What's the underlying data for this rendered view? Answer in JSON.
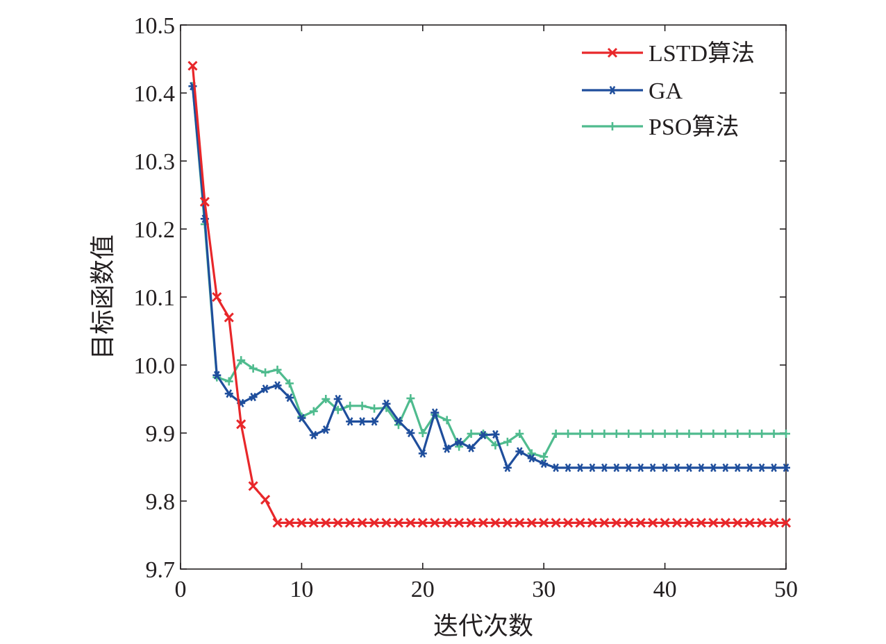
{
  "chart_data": {
    "type": "line",
    "title": "",
    "xlabel": "迭代次数",
    "ylabel": "目标函数值",
    "xlim": [
      0,
      50
    ],
    "ylim": [
      9.7,
      10.5
    ],
    "x_ticks": [
      0,
      10,
      20,
      30,
      40,
      50
    ],
    "y_ticks": [
      9.7,
      9.8,
      9.9,
      10.0,
      10.1,
      10.2,
      10.3,
      10.4,
      10.5
    ],
    "y_tick_labels": [
      "9.7",
      "9.8",
      "9.9",
      "10.0",
      "10.1",
      "10.2",
      "10.3",
      "10.4",
      "10.5"
    ],
    "grid": false,
    "legend_position": "top-right",
    "x": [
      1,
      2,
      3,
      4,
      5,
      6,
      7,
      8,
      9,
      10,
      11,
      12,
      13,
      14,
      15,
      16,
      17,
      18,
      19,
      20,
      21,
      22,
      23,
      24,
      25,
      26,
      27,
      28,
      29,
      30,
      31,
      32,
      33,
      34,
      35,
      36,
      37,
      38,
      39,
      40,
      41,
      42,
      43,
      44,
      45,
      46,
      47,
      48,
      49,
      50
    ],
    "series": [
      {
        "name": "LSTD算法",
        "color": "#e8272a",
        "marker": "x",
        "values": [
          10.44,
          10.24,
          10.1,
          10.07,
          9.913,
          9.822,
          9.802,
          9.768,
          9.768,
          9.768,
          9.768,
          9.768,
          9.768,
          9.768,
          9.768,
          9.768,
          9.768,
          9.768,
          9.768,
          9.768,
          9.768,
          9.768,
          9.768,
          9.768,
          9.768,
          9.768,
          9.768,
          9.768,
          9.768,
          9.768,
          9.768,
          9.768,
          9.768,
          9.768,
          9.768,
          9.768,
          9.768,
          9.768,
          9.768,
          9.768,
          9.768,
          9.768,
          9.768,
          9.768,
          9.768,
          9.768,
          9.768,
          9.768,
          9.768,
          9.768
        ]
      },
      {
        "name": "GA",
        "color": "#1f4e9c",
        "marker": "asterisk",
        "values": [
          10.41,
          10.215,
          9.985,
          9.958,
          9.944,
          9.953,
          9.965,
          9.97,
          9.952,
          9.922,
          9.897,
          9.905,
          9.95,
          9.917,
          9.917,
          9.917,
          9.943,
          9.918,
          9.9,
          9.87,
          9.93,
          9.877,
          9.887,
          9.878,
          9.897,
          9.898,
          9.849,
          9.873,
          9.863,
          9.855,
          9.849,
          9.849,
          9.849,
          9.849,
          9.849,
          9.849,
          9.849,
          9.849,
          9.849,
          9.849,
          9.849,
          9.849,
          9.849,
          9.849,
          9.849,
          9.849,
          9.849,
          9.849,
          9.849,
          9.849
        ]
      },
      {
        "name": "PSO算法",
        "color": "#4fbb8e",
        "marker": "plus",
        "values": [
          10.41,
          10.207,
          9.982,
          9.976,
          10.007,
          9.995,
          9.989,
          9.993,
          9.973,
          9.924,
          9.932,
          9.95,
          9.934,
          9.94,
          9.94,
          9.936,
          9.937,
          9.912,
          9.951,
          9.9,
          9.927,
          9.919,
          9.88,
          9.899,
          9.899,
          9.882,
          9.887,
          9.899,
          9.87,
          9.865,
          9.899,
          9.899,
          9.899,
          9.899,
          9.899,
          9.899,
          9.899,
          9.899,
          9.899,
          9.899,
          9.899,
          9.899,
          9.899,
          9.899,
          9.899,
          9.899,
          9.899,
          9.899,
          9.899,
          9.899
        ]
      }
    ]
  }
}
